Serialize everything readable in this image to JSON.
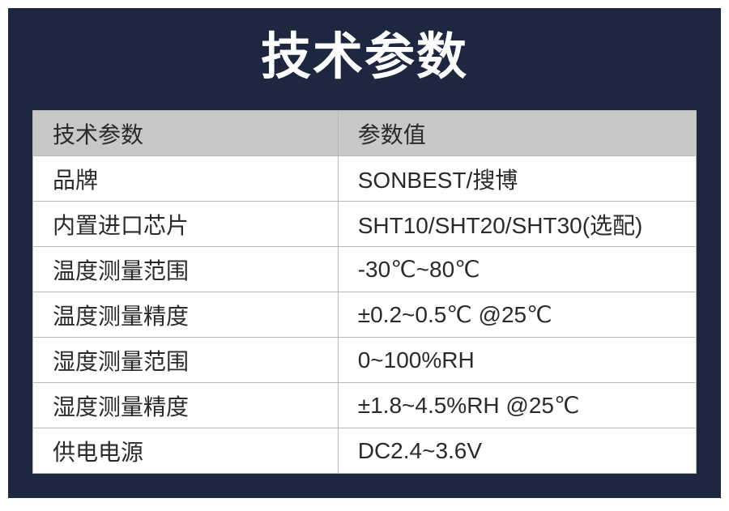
{
  "colors": {
    "panel_bg": "#1d2740",
    "title_color": "#ffffff",
    "header_bg": "#c8c8c8",
    "row_bg": "#ffffff",
    "border_color": "#b8b8b8",
    "text_color": "#2a2a2a"
  },
  "title": "技术参数",
  "table": {
    "headers": [
      "技术参数",
      "参数值"
    ],
    "rows": [
      [
        "品牌",
        "SONBEST/搜博"
      ],
      [
        "内置进口芯片",
        "SHT10/SHT20/SHT30(选配)"
      ],
      [
        "温度测量范围",
        "-30℃~80℃"
      ],
      [
        "温度测量精度",
        "±0.2~0.5℃ @25℃"
      ],
      [
        "湿度测量范围",
        "0~100%RH"
      ],
      [
        "湿度测量精度",
        "±1.8~4.5%RH @25℃"
      ],
      [
        "供电电源",
        "DC2.4~3.6V"
      ]
    ]
  }
}
